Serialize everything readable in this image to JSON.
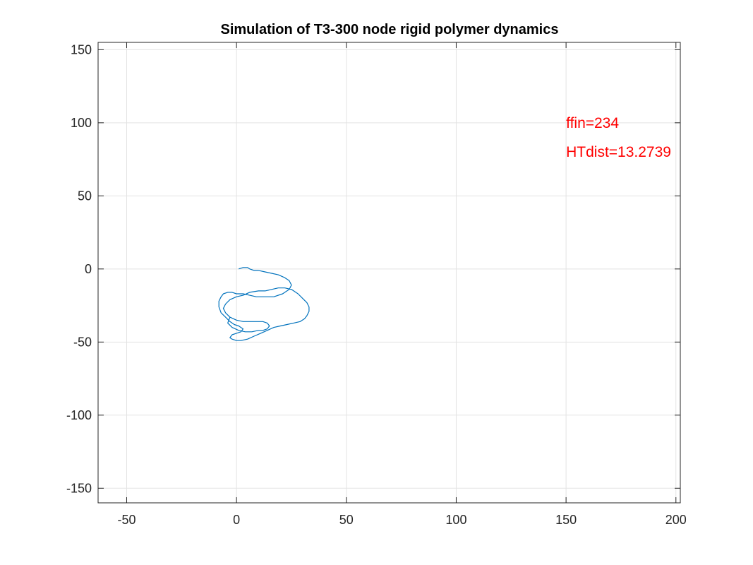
{
  "chart_data": {
    "type": "line",
    "title": "Simulation of T3-300 node rigid polymer dynamics",
    "xlabel": "",
    "ylabel": "",
    "xlim": [
      -63,
      202
    ],
    "ylim": [
      -160,
      155
    ],
    "xticks": [
      -50,
      0,
      50,
      100,
      150,
      200
    ],
    "yticks": [
      -150,
      -100,
      -50,
      0,
      50,
      100,
      150
    ],
    "xtick_labels": [
      "-50",
      "0",
      "50",
      "100",
      "150",
      "200"
    ],
    "ytick_labels": [
      "-150",
      "-100",
      "-50",
      "0",
      "50",
      "100",
      "150"
    ],
    "grid": true,
    "box": true,
    "series": [
      {
        "color": "#0072BD",
        "x": [
          1,
          3,
          5,
          6,
          8,
          10,
          13,
          16,
          19,
          22,
          24,
          25,
          24,
          21,
          17,
          13,
          9,
          6,
          3,
          0,
          -2,
          -4,
          -6,
          -7,
          -8,
          -8,
          -7,
          -5,
          -3,
          -1,
          1,
          3,
          2,
          0,
          -2,
          -3,
          -2,
          0,
          2,
          5,
          8,
          11,
          14,
          17,
          20,
          23,
          26,
          29,
          31,
          32,
          33,
          33,
          32,
          30,
          28,
          25,
          22,
          19,
          16,
          13,
          10,
          6,
          3,
          0,
          -3,
          -5,
          -6,
          -5,
          -3,
          0,
          3,
          6,
          9,
          12,
          14,
          15,
          14,
          12,
          10,
          7,
          4,
          1,
          -2,
          -4,
          -3
        ],
        "y": [
          0,
          1,
          1,
          0,
          -1,
          -1,
          -2,
          -3,
          -4,
          -6,
          -8,
          -11,
          -14,
          -17,
          -19,
          -19,
          -19,
          -18,
          -17,
          -17,
          -16,
          -16,
          -17,
          -19,
          -22,
          -26,
          -30,
          -33,
          -36,
          -38,
          -39,
          -41,
          -43,
          -44,
          -45,
          -47,
          -48,
          -49,
          -49,
          -48,
          -46,
          -44,
          -42,
          -40,
          -39,
          -38,
          -37,
          -36,
          -34,
          -32,
          -29,
          -26,
          -23,
          -20,
          -17,
          -14,
          -13,
          -13,
          -14,
          -15,
          -15,
          -16,
          -18,
          -19,
          -21,
          -24,
          -27,
          -30,
          -33,
          -35,
          -36,
          -36,
          -36,
          -36,
          -37,
          -39,
          -41,
          -42,
          -42,
          -43,
          -43,
          -42,
          -40,
          -37,
          -33
        ]
      }
    ],
    "annotations": [
      {
        "text": "ffin=234",
        "x": 150,
        "y": 100,
        "color": "#ff0000"
      },
      {
        "text": "HTdist=13.2739",
        "x": 150,
        "y": 80,
        "color": "#ff0000"
      }
    ]
  }
}
